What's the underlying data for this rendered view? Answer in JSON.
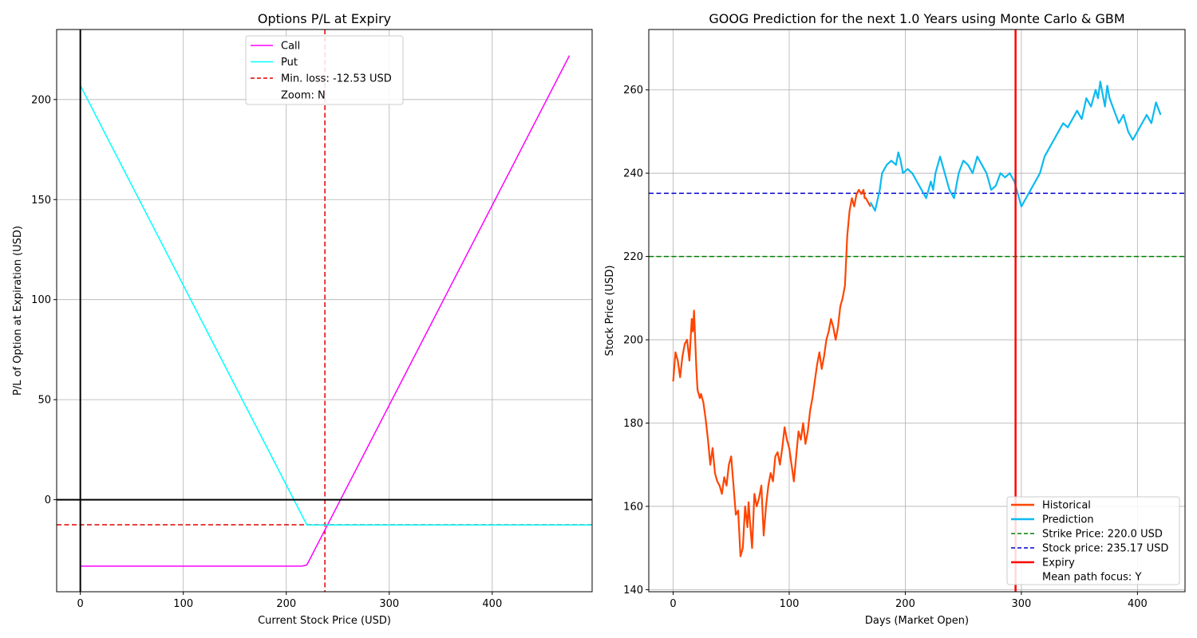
{
  "chart_data": [
    {
      "type": "line",
      "title": "Options P/L at Expiry",
      "xlabel": "Current Stock Price (USD)",
      "ylabel": "P/L of Option at Expiration (USD)",
      "xlim": [
        -23,
        497
      ],
      "ylim": [
        -46,
        235
      ],
      "xticks": [
        0,
        100,
        200,
        300,
        400
      ],
      "yticks": [
        0,
        50,
        100,
        150,
        200
      ],
      "grid": true,
      "legend_position": "top-center",
      "series": [
        {
          "name": "Call",
          "color": "#ff00ff",
          "style": "solid",
          "x": [
            0,
            215,
            220,
            475
          ],
          "y": [
            -33.2,
            -33.2,
            -32.6,
            222
          ]
        },
        {
          "name": "Put",
          "color": "#00ffff",
          "style": "solid",
          "x": [
            0,
            220,
            497
          ],
          "y": [
            207,
            -12.6,
            -12.6
          ]
        }
      ],
      "reference_lines": [
        {
          "name": "Min. loss: -12.53 USD",
          "orientation": "horizontal",
          "value": -12.53,
          "color": "#e00000",
          "style": "dashed"
        },
        {
          "name": "",
          "orientation": "vertical",
          "value": 237.5,
          "color": "#e00000",
          "style": "dashed"
        },
        {
          "name": "",
          "orientation": "horizontal",
          "value": 0,
          "color": "#000000",
          "style": "solid"
        },
        {
          "name": "",
          "orientation": "vertical",
          "value": 0,
          "color": "#000000",
          "style": "solid"
        }
      ],
      "legend_extra": [
        "Zoom: N"
      ]
    },
    {
      "type": "line",
      "title": "GOOG Prediction for the next 1.0 Years using Monte Carlo & GBM",
      "xlabel": "Days (Market Open)",
      "ylabel": "Stock Price (USD)",
      "xlim": [
        -21,
        441
      ],
      "ylim": [
        139.5,
        274.5
      ],
      "xticks": [
        0,
        100,
        200,
        300,
        400
      ],
      "yticks": [
        140,
        160,
        180,
        200,
        220,
        240,
        260
      ],
      "grid": true,
      "legend_position": "bottom-right",
      "series": [
        {
          "name": "Historical",
          "color": "#ff4500",
          "style": "solid",
          "x": [
            0,
            2,
            4,
            6,
            8,
            10,
            12,
            14,
            16,
            17,
            18,
            19,
            20,
            21,
            22,
            23,
            24,
            26,
            28,
            30,
            32,
            34,
            36,
            38,
            40,
            42,
            44,
            46,
            48,
            50,
            52,
            54,
            56,
            58,
            60,
            62,
            64,
            65,
            66,
            68,
            70,
            72,
            74,
            76,
            78,
            80,
            82,
            84,
            86,
            88,
            90,
            92,
            94,
            96,
            98,
            100,
            102,
            104,
            106,
            108,
            110,
            112,
            114,
            116,
            118,
            120,
            122,
            124,
            126,
            128,
            130,
            132,
            134,
            136,
            138,
            140,
            142,
            144,
            146,
            148,
            150,
            152,
            154,
            156,
            158,
            160,
            162,
            164,
            165,
            166,
            168,
            170
          ],
          "y": [
            190,
            197,
            195,
            191,
            196,
            199,
            200,
            195,
            205,
            202,
            207,
            200,
            193,
            188,
            187,
            186,
            187,
            185,
            181,
            176,
            170,
            174,
            168,
            166,
            165,
            163,
            167,
            165,
            170,
            172,
            165,
            158,
            159,
            148,
            150,
            160,
            155,
            161,
            157,
            150,
            163,
            160,
            162,
            165,
            153,
            160,
            165,
            168,
            166,
            172,
            173,
            170,
            174,
            179,
            176,
            174,
            170,
            166,
            172,
            178,
            176,
            180,
            175,
            178,
            183,
            186,
            190,
            194,
            197,
            193,
            196,
            200,
            202,
            205,
            203,
            200,
            203,
            208,
            210,
            213,
            225,
            231,
            234,
            232,
            235,
            236,
            235,
            236,
            234,
            234,
            233,
            232
          ]
        },
        {
          "name": "Prediction",
          "color": "#0cbaf1",
          "style": "solid",
          "x": [
            170,
            174,
            178,
            180,
            184,
            188,
            192,
            194,
            196,
            198,
            202,
            206,
            210,
            214,
            218,
            222,
            224,
            226,
            228,
            230,
            234,
            238,
            242,
            246,
            250,
            254,
            258,
            262,
            266,
            270,
            274,
            278,
            282,
            286,
            290,
            294,
            296,
            298,
            300,
            304,
            308,
            312,
            316,
            320,
            324,
            328,
            332,
            336,
            340,
            344,
            348,
            352,
            356,
            360,
            364,
            366,
            368,
            372,
            374,
            376,
            380,
            384,
            388,
            392,
            396,
            400,
            404,
            408,
            412,
            416,
            420
          ],
          "y": [
            233,
            231,
            236,
            240,
            242,
            243,
            242,
            245,
            243,
            240,
            241,
            240,
            238,
            236,
            234,
            238,
            236,
            240,
            242,
            244,
            240,
            236,
            234,
            240,
            243,
            242,
            240,
            244,
            242,
            240,
            236,
            237,
            240,
            239,
            240,
            238,
            236,
            234,
            232,
            234,
            236,
            238,
            240,
            244,
            246,
            248,
            250,
            252,
            251,
            253,
            255,
            253,
            258,
            256,
            260,
            258,
            262,
            256,
            261,
            258,
            255,
            252,
            254,
            250,
            248,
            250,
            252,
            254,
            252,
            257,
            254
          ]
        }
      ],
      "reference_lines": [
        {
          "name": "Strike Price: 220.0 USD",
          "orientation": "horizontal",
          "value": 220,
          "color": "#008000",
          "style": "dashed"
        },
        {
          "name": "Stock price: 235.17 USD",
          "orientation": "horizontal",
          "value": 235.17,
          "color": "#0000cd",
          "style": "dashed"
        },
        {
          "name": "Expiry",
          "orientation": "vertical",
          "value": 295,
          "color": "#ff0000",
          "style": "solid"
        }
      ],
      "legend_extra": [
        "Mean path focus: Y"
      ]
    }
  ]
}
